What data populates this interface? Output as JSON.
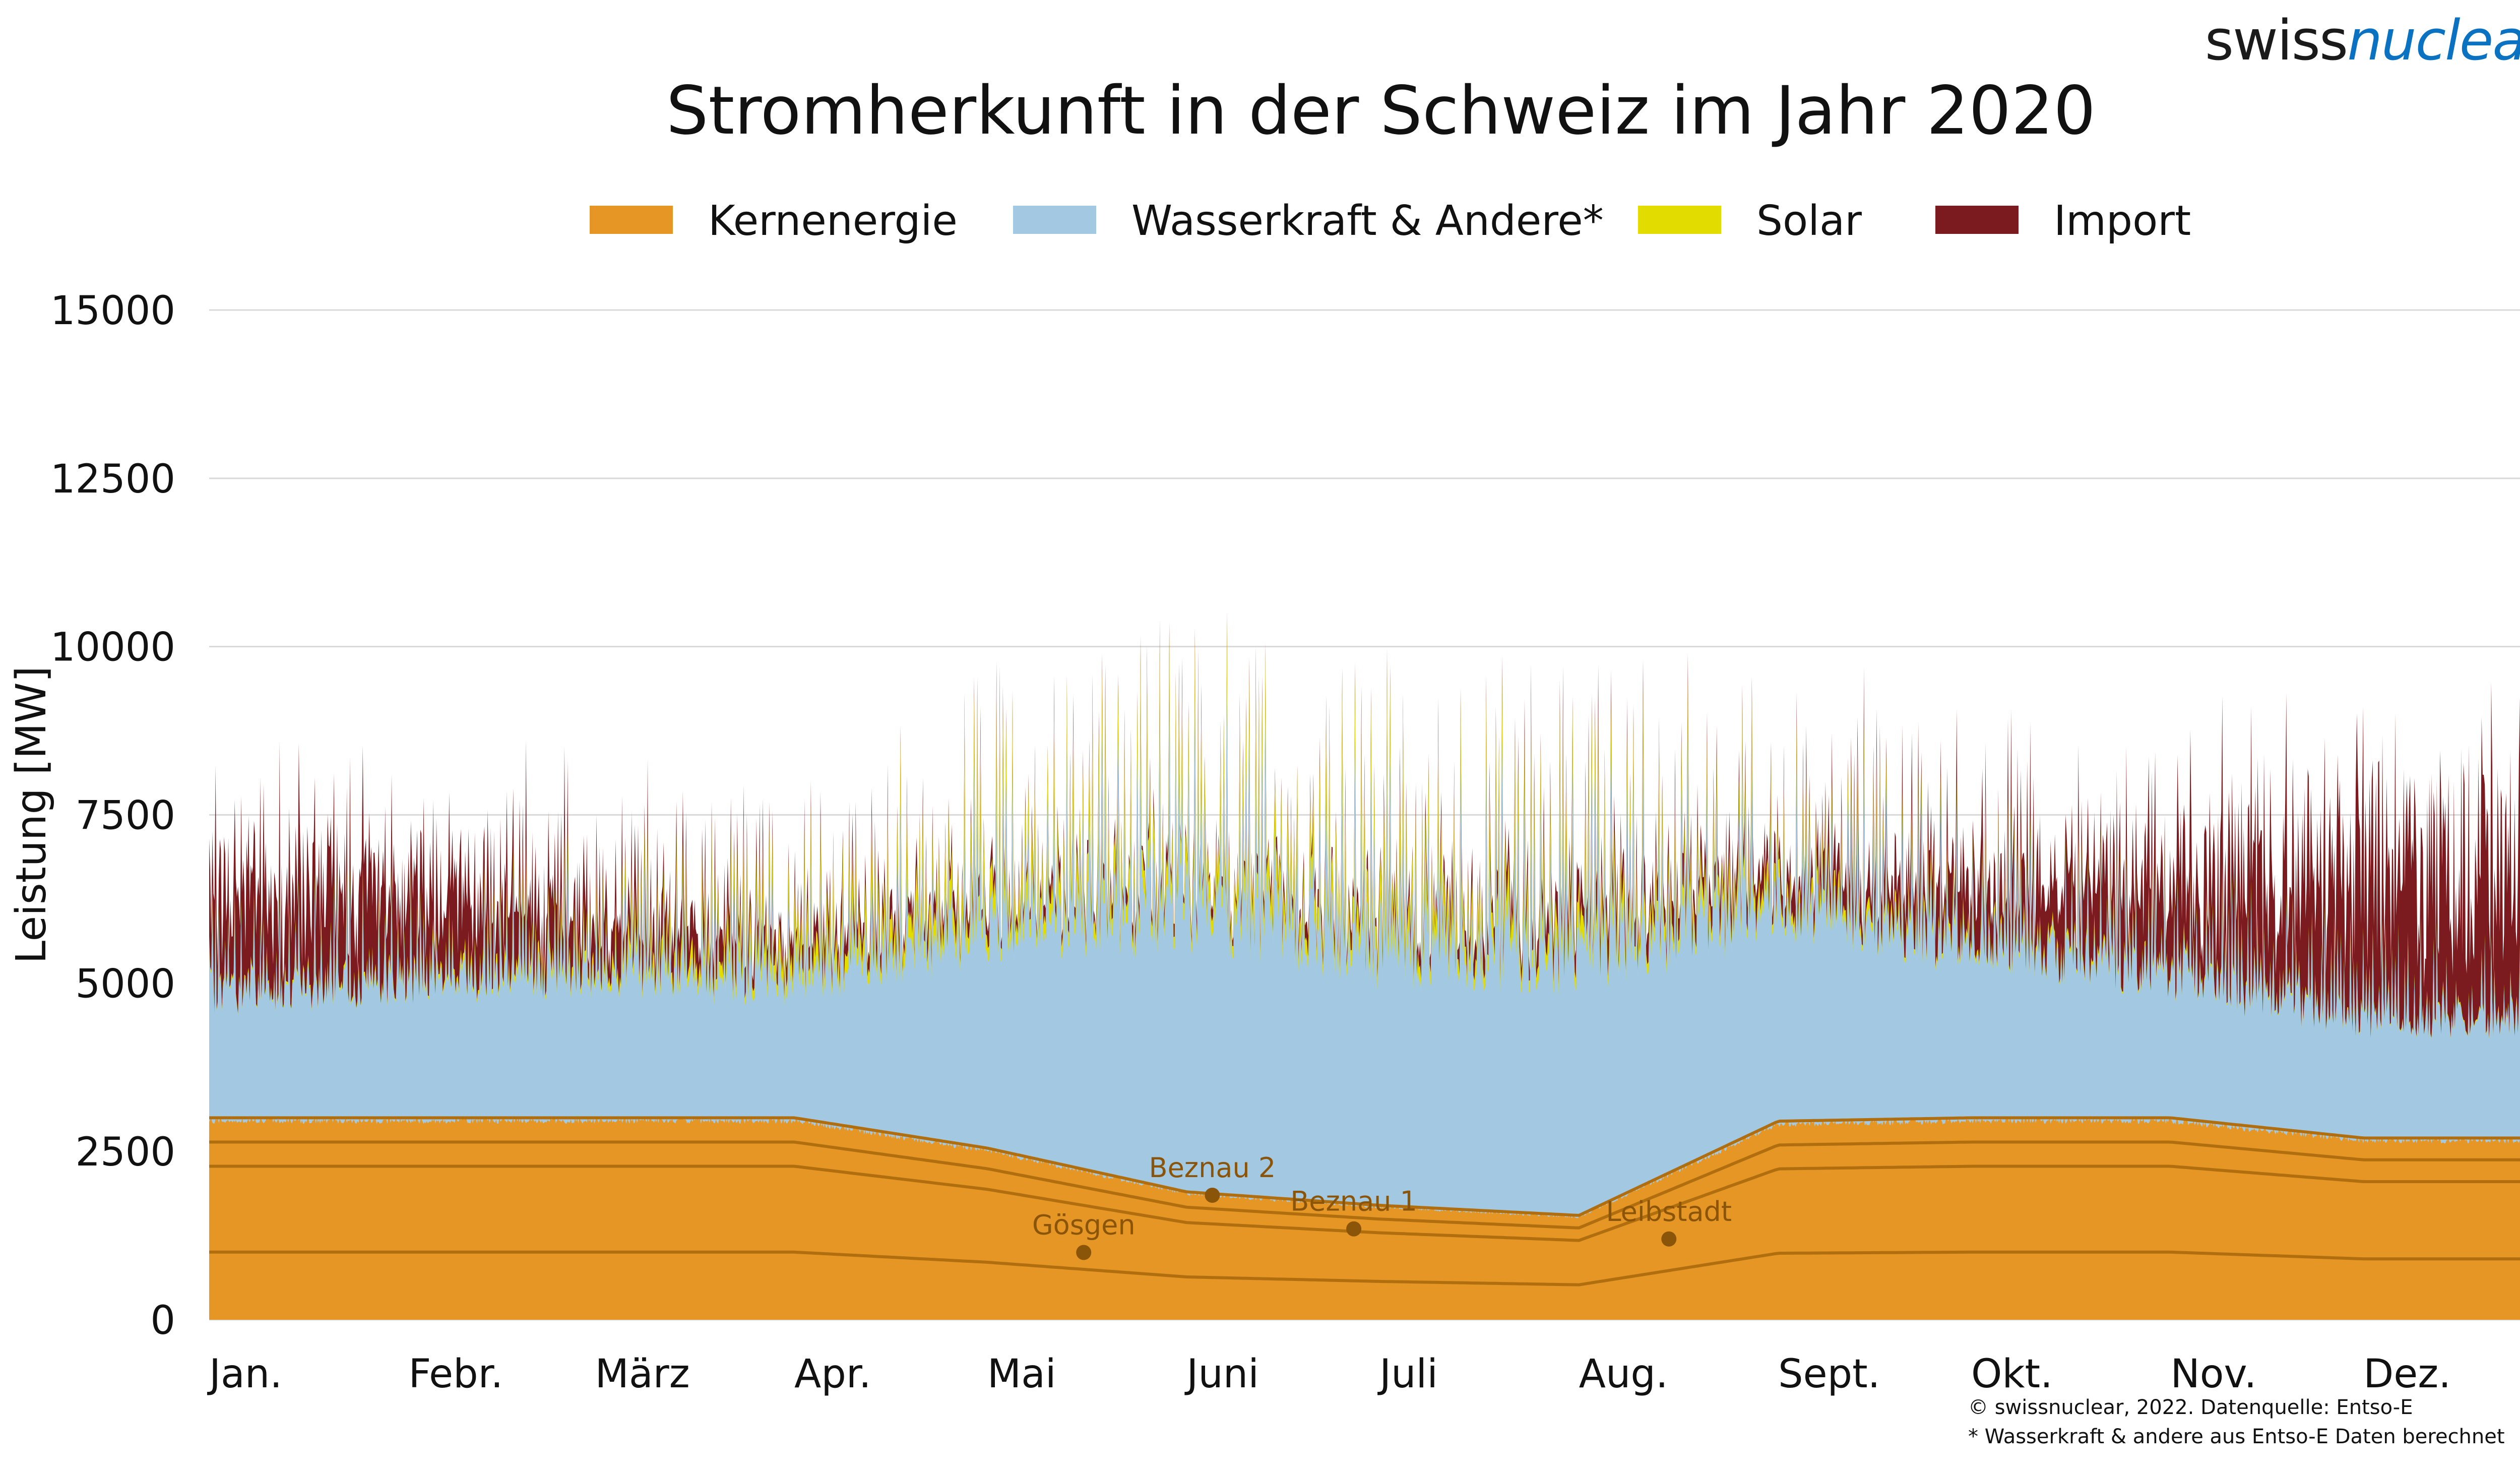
{
  "logo": {
    "part1": "swiss",
    "part2": "nuclear"
  },
  "chart_data": {
    "type": "area",
    "title": "Stromherkunft in der Schweiz im Jahr 2020",
    "xlabel": "",
    "ylabel": "Leistung [MW]",
    "ylim": [
      0,
      15000
    ],
    "yticks": [
      0,
      2500,
      5000,
      7500,
      10000,
      12500,
      15000
    ],
    "grid": true,
    "legend_position": "top",
    "categories": [
      "Jan.",
      "Febr.",
      "März",
      "Apr.",
      "Mai",
      "Juni",
      "Juli",
      "Aug.",
      "Sept.",
      "Okt.",
      "Nov.",
      "Dez."
    ],
    "x": [
      "2020-01",
      "2020-02",
      "2020-03",
      "2020-04",
      "2020-05",
      "2020-06",
      "2020-07",
      "2020-08",
      "2020-09",
      "2020-10",
      "2020-11",
      "2020-12"
    ],
    "series": [
      {
        "name": "Kernenergie",
        "color": "#e59625",
        "values": [
          3000,
          3000,
          3000,
          3000,
          2550,
          1900,
          1700,
          1550,
          2950,
          3000,
          3000,
          2700
        ]
      },
      {
        "name": "Wasserkraft & Andere*",
        "color": "#a3c9e2",
        "values": [
          2100,
          2300,
          2400,
          2300,
          3600,
          4700,
          4300,
          4300,
          3600,
          2900,
          2400,
          2000
        ]
      },
      {
        "name": "Solar",
        "color": "#e2dc00",
        "values": [
          50,
          100,
          250,
          450,
          550,
          500,
          600,
          500,
          350,
          150,
          80,
          40
        ]
      },
      {
        "name": "Import",
        "color": "#7b1b20",
        "values": [
          1300,
          1200,
          600,
          300,
          200,
          150,
          200,
          350,
          300,
          700,
          1100,
          2200
        ]
      }
    ],
    "annotations": [
      {
        "text": "Gösgen",
        "x": "2020-05-16",
        "y": 1000
      },
      {
        "text": "Beznau 2",
        "x": "2020-06-05",
        "y": 1850
      },
      {
        "text": "Beznau 1",
        "x": "2020-06-27",
        "y": 1350
      },
      {
        "text": "Leibstadt",
        "x": "2020-08-15",
        "y": 1200
      }
    ],
    "footnotes": [
      "© swissnuclear, 2022. Datenquelle: Entso-E",
      "* Wasserkraft & andere aus Entso-E Daten berechnet"
    ]
  }
}
